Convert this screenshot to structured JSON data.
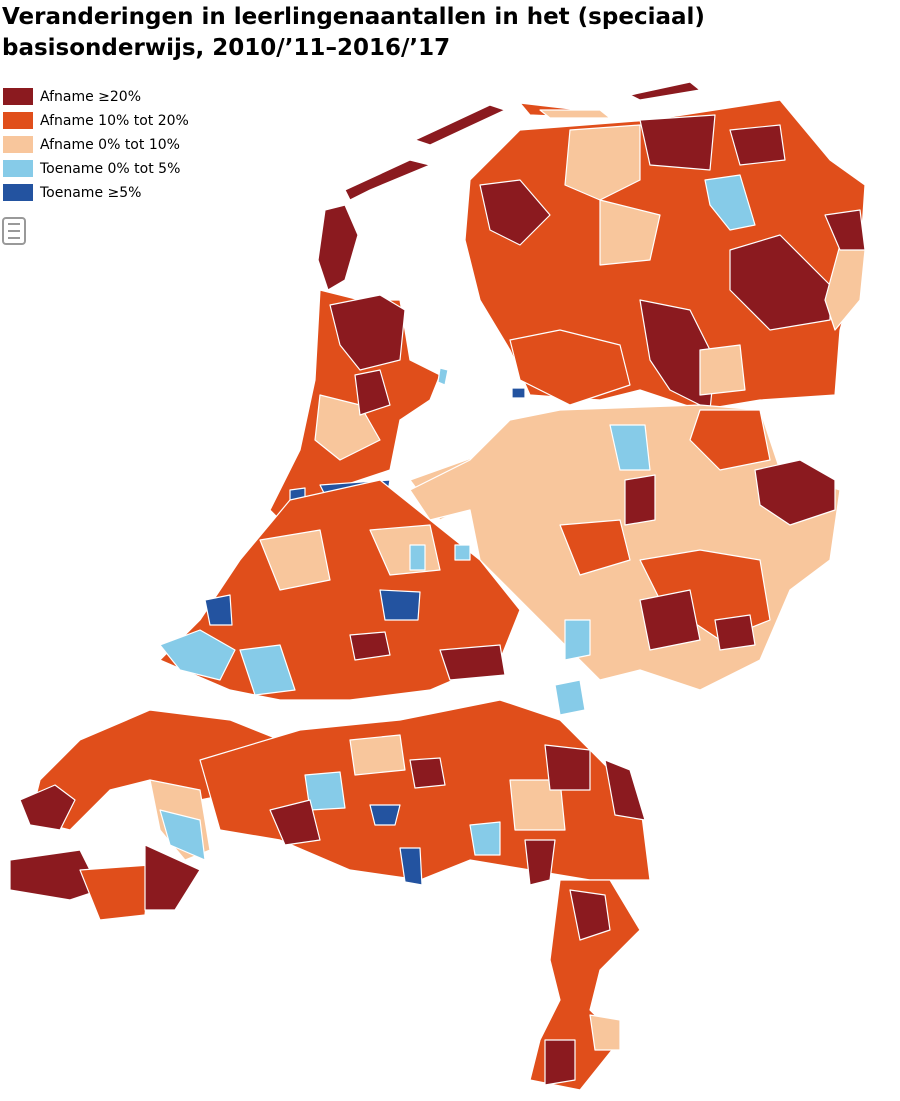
{
  "title": [
    "Veranderingen in leerlingenaantallen in het (speciaal)",
    "basisonderwijs, 2010/’11–2016/’17"
  ],
  "legend": [
    {
      "label": "Afname ≥20%",
      "color": "#8b1a1f"
    },
    {
      "label": "Afname 10% tot 20%",
      "color": "#e04e1b"
    },
    {
      "label": "Afname 0% tot 10%",
      "color": "#f8c69c"
    },
    {
      "label": "Toename 0% tot 5%",
      "color": "#86cbe8"
    },
    {
      "label": "Toename ≥5%",
      "color": "#2353a0"
    }
  ]
}
